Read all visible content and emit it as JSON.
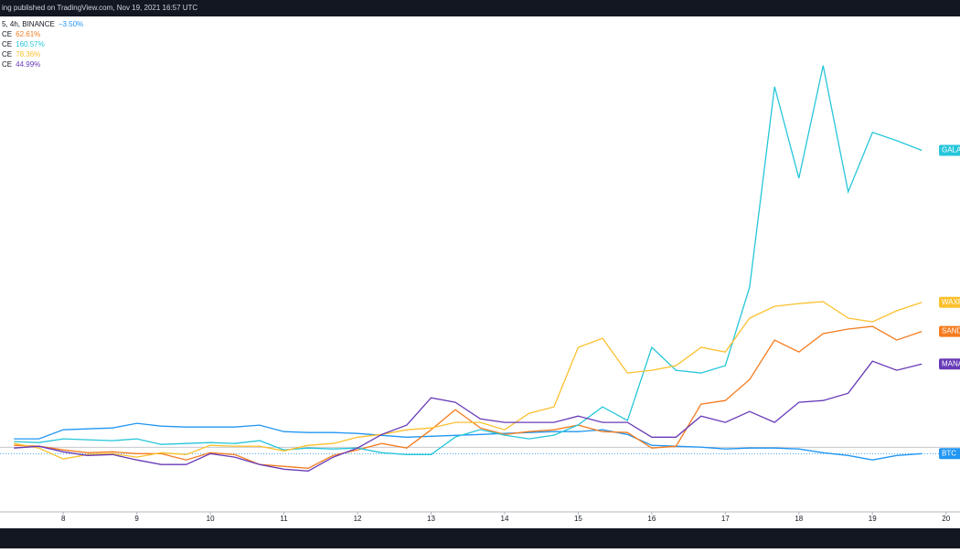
{
  "header": {
    "title": "ing published on TradingView.com, Nov 19, 2021 16:57 UTC"
  },
  "legend": [
    {
      "label": "5, 4h, BINANCE",
      "change": "−3.50%"
    },
    {
      "label": "CE",
      "change": "62.61%"
    },
    {
      "label": "CE",
      "change": "160.57%"
    },
    {
      "label": "CE",
      "change": "78.36%"
    },
    {
      "label": "CE",
      "change": "44.99%"
    }
  ],
  "chart_data": {
    "type": "line",
    "x": [
      7.33,
      7.67,
      8,
      8.33,
      8.67,
      9,
      9.33,
      9.67,
      10,
      10.33,
      10.67,
      11,
      11.33,
      11.67,
      12,
      12.33,
      12.67,
      13,
      13.33,
      13.67,
      14,
      14.33,
      14.67,
      15,
      15.33,
      15.67,
      16,
      16.33,
      16.67,
      17,
      17.33,
      17.67,
      18,
      18.33,
      18.67,
      19,
      19.33,
      19.67
    ],
    "xlim": [
      7.14,
      20.19
    ],
    "xticks": [
      8,
      9,
      10,
      11,
      12,
      13,
      14,
      15,
      16,
      17,
      18,
      19,
      20
    ],
    "ylim": [
      -35,
      232
    ],
    "series": [
      {
        "name": "BTC",
        "color": "#2196f3",
        "values": [
          4.5,
          4.5,
          9.4,
          9.9,
          10.4,
          12.9,
          11.4,
          10.9,
          10.9,
          10.9,
          11.9,
          8.4,
          7.9,
          7.9,
          7.4,
          6.4,
          5.4,
          5.9,
          6.4,
          6.9,
          7.4,
          7.9,
          8.4,
          8.4,
          9.4,
          6.9,
          1.0,
          0.5,
          0,
          -1.0,
          -0.5,
          -0.5,
          -1.0,
          -3.0,
          -4.5,
          -6.9,
          -4.5,
          -3.5
        ]
      },
      {
        "name": "SAND",
        "color": "#f57c1f",
        "values": [
          1.0,
          0.5,
          -1.5,
          -3.0,
          -2.5,
          -3.5,
          -3.5,
          -6.9,
          -3.0,
          -4.0,
          -9.4,
          -10.4,
          -11.4,
          -4.5,
          -1.5,
          2.0,
          -0.5,
          9.4,
          20.3,
          10.4,
          6.9,
          8.4,
          9.4,
          11.9,
          8.4,
          7.9,
          -0.5,
          0.5,
          23.3,
          25.2,
          36.6,
          57.9,
          51.5,
          61.4,
          63.9,
          65.3,
          57.9,
          62.61
        ]
      },
      {
        "name": "GALA",
        "color": "#26c6da",
        "values": [
          3.0,
          2.5,
          4.5,
          4.0,
          3.5,
          4.5,
          1.5,
          2.0,
          2.5,
          2.0,
          3.5,
          -1.5,
          -0.5,
          -1.0,
          -0.5,
          -3.0,
          -4.0,
          -4.0,
          5.5,
          9.5,
          6.5,
          4.5,
          6.5,
          12.0,
          21.8,
          14.4,
          54.0,
          41.6,
          40.1,
          44.1,
          86.6,
          195.0,
          145.5,
          206.4,
          138.1,
          170.3,
          165.8,
          160.57
        ]
      },
      {
        "name": "WAXP",
        "color": "#fbc02d",
        "values": [
          2.0,
          -0.5,
          -6.4,
          -4.0,
          -3.5,
          -5.4,
          -3.0,
          -4.0,
          1.0,
          0.5,
          0.5,
          -2.0,
          1.0,
          2.0,
          5.4,
          6.9,
          9.4,
          10.4,
          13.4,
          13.4,
          9.4,
          18.3,
          21.8,
          54.0,
          58.9,
          40.1,
          41.6,
          44.1,
          54.0,
          51.5,
          69.8,
          76.2,
          77.7,
          78.7,
          69.8,
          67.8,
          73.8,
          78.36
        ]
      },
      {
        "name": "MANA",
        "color": "#673ab7",
        "values": [
          -0.5,
          0.5,
          -2.5,
          -4.5,
          -4.0,
          -6.9,
          -9.4,
          -9.4,
          -3.5,
          -5.4,
          -9.4,
          -11.9,
          -12.9,
          -5.4,
          -0.5,
          6.9,
          11.9,
          26.7,
          24.3,
          15.3,
          13.4,
          13.4,
          13.4,
          16.8,
          13.4,
          13.4,
          5.4,
          5.4,
          16.8,
          13.4,
          19.3,
          13.4,
          24.3,
          25.2,
          29.2,
          46.5,
          41.6,
          44.99
        ]
      }
    ]
  }
}
